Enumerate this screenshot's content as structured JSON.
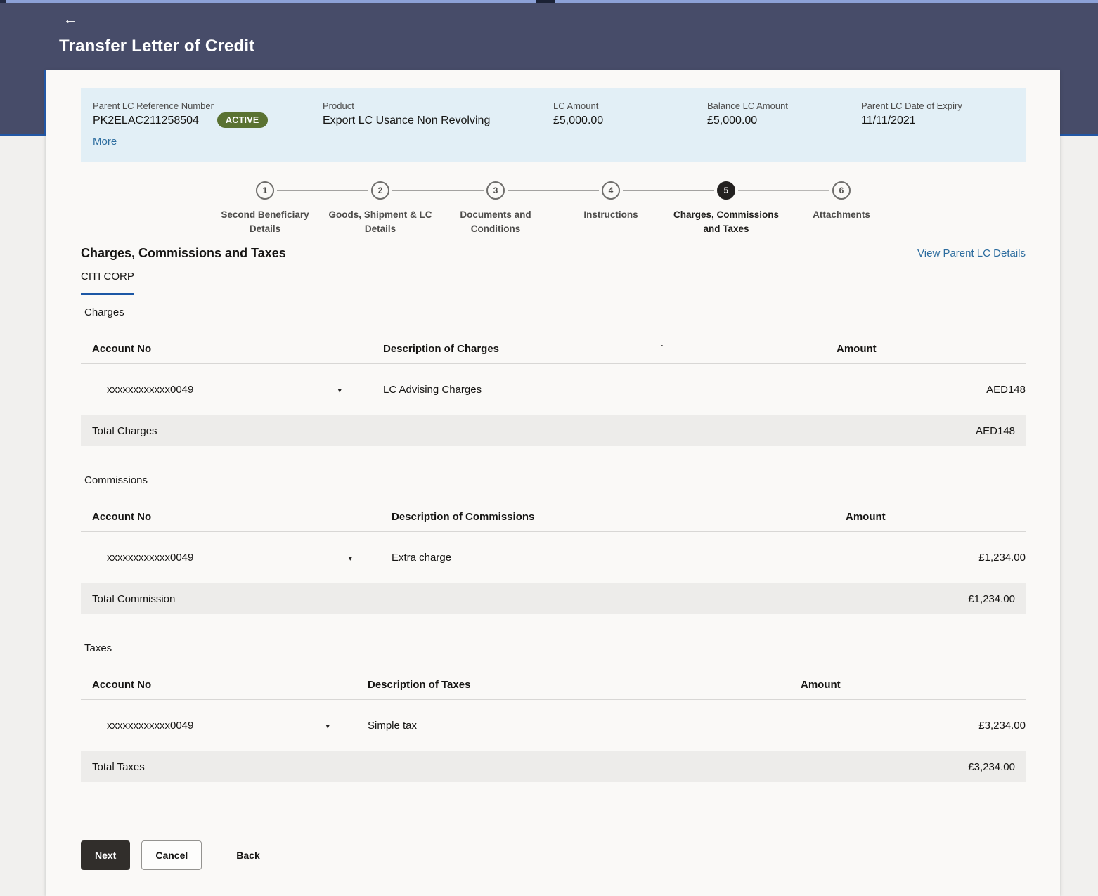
{
  "page": {
    "title": "Transfer Letter of Credit"
  },
  "lc_summary": {
    "reference": {
      "label": "Parent LC Reference Number",
      "value": "PK2ELAC211258504"
    },
    "status_badge": "ACTIVE",
    "badge_color": "#5A7232",
    "product": {
      "label": "Product",
      "value": "Export LC Usance Non Revolving"
    },
    "lc_amount": {
      "label": "LC Amount",
      "value": "£5,000.00"
    },
    "balance_lc_amount": {
      "label": "Balance LC Amount",
      "value": "£5,000.00"
    },
    "expiry": {
      "label": "Parent LC Date of Expiry",
      "value": "11/11/2021"
    },
    "more_link": "More"
  },
  "stepper": {
    "steps": [
      {
        "num": "1",
        "label": "Second Beneficiary Details",
        "active": false
      },
      {
        "num": "2",
        "label": "Goods, Shipment & LC Details",
        "active": false
      },
      {
        "num": "3",
        "label": "Documents and Conditions",
        "active": false
      },
      {
        "num": "4",
        "label": "Instructions",
        "active": false
      },
      {
        "num": "5",
        "label": "Charges, Commissions and Taxes",
        "active": true
      },
      {
        "num": "6",
        "label": "Attachments",
        "active": false
      }
    ]
  },
  "content": {
    "heading": "Charges, Commissions and Taxes",
    "view_parent_link": "View Parent LC Details",
    "active_tab": "CITI CORP",
    "sections": [
      {
        "title": "Charges",
        "col_account": "Account No",
        "col_description": "Description of Charges",
        "col_amount": "Amount",
        "stray_mark": ".",
        "row": {
          "account": "xxxxxxxxxxxx0049",
          "description": "LC Advising Charges",
          "amount": "AED148"
        },
        "total_label": "Total Charges",
        "total_amount": "AED148"
      },
      {
        "title": "Commissions",
        "col_account": "Account No",
        "col_description": "Description of Commissions",
        "col_amount": "Amount",
        "row": {
          "account": "xxxxxxxxxxxx0049",
          "description": "Extra charge",
          "amount": "£1,234.00"
        },
        "total_label": "Total Commission",
        "total_amount": "£1,234.00"
      },
      {
        "title": "Taxes",
        "col_account": "Account No",
        "col_description": "Description of Taxes",
        "col_amount": "Amount",
        "row": {
          "account": "xxxxxxxxxxxx0049",
          "description": "Simple tax",
          "amount": "£3,234.00"
        },
        "total_label": "Total Taxes",
        "total_amount": "£3,234.00"
      }
    ]
  },
  "footer": {
    "next_label": "Next",
    "cancel_label": "Cancel",
    "back_label": "Back"
  }
}
